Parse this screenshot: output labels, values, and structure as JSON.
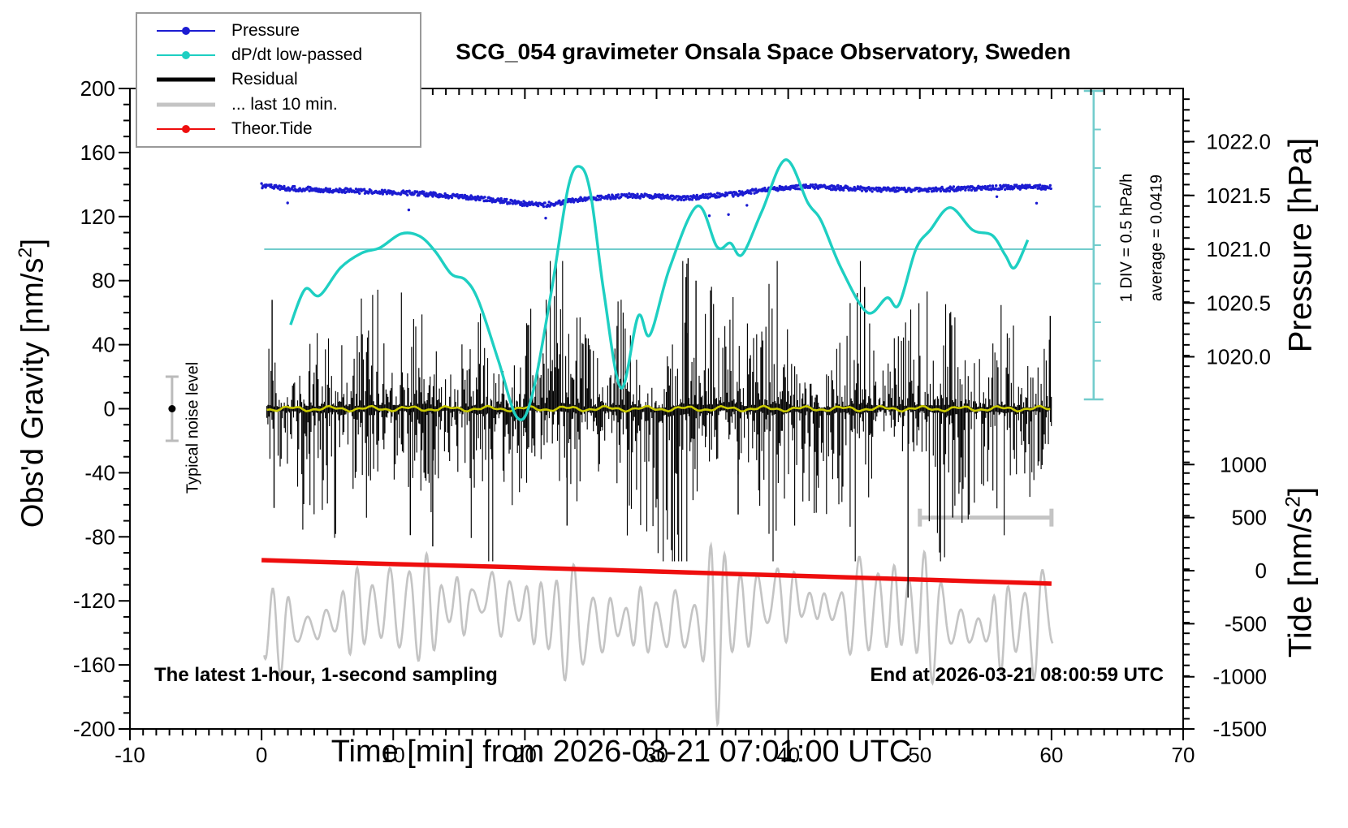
{
  "header": {
    "title": "SCG_054 gravimeter Onsala Space Observatory, Sweden"
  },
  "legend": {
    "items": [
      {
        "label": "Pressure",
        "color": "#1c1cd2",
        "style": "thin-dot"
      },
      {
        "label": "dP/dt low-passed",
        "color": "#1ecfc2",
        "style": "thin-dot"
      },
      {
        "label": "Residual",
        "color": "#000000",
        "style": "thick"
      },
      {
        "label": "... last 10 min.",
        "color": "#c4c4c4",
        "style": "thick"
      },
      {
        "label": "Theor.Tide",
        "color": "#ee0e0e",
        "style": "thin-dot"
      }
    ]
  },
  "axes": {
    "left": {
      "label_pre": "Obs'd Gravity [nm/s",
      "label_sup": "2",
      "label_post": "]",
      "ticks": [
        -200,
        -160,
        -120,
        -80,
        -40,
        0,
        40,
        80,
        120,
        160,
        200
      ],
      "minor_step": 10,
      "range": [
        -200,
        200
      ]
    },
    "bottom": {
      "label": "Time [min] from 2026-03-21 07:01:00 UTC",
      "ticks": [
        -10,
        0,
        10,
        20,
        30,
        40,
        50,
        60,
        70
      ],
      "minor_step": 1,
      "range": [
        -10,
        70
      ]
    },
    "right_pressure": {
      "label": "Pressure [hPa]",
      "ticks": [
        1022.0,
        1021.5,
        1021.0,
        1020.5,
        1020.0
      ]
    },
    "right_tide": {
      "label_pre": "Tide [nm/s",
      "label_sup": "2",
      "label_post": "]",
      "ticks": [
        1000,
        500,
        0,
        -500,
        -1000,
        -1500
      ]
    }
  },
  "annotations": {
    "sampling_note": "The latest 1-hour, 1-second sampling",
    "end_note": "End at 2026-03-21 08:00:59 UTC",
    "noise_label": "Typical noise level",
    "div_label": "1 DIV = 0.5 hPa/h",
    "average_label": "average = 0.0419"
  },
  "chart_data": {
    "type": "line",
    "title": "SCG_054 gravimeter Onsala Space Observatory, Sweden",
    "xlabel": "Time [min] from 2026-03-21 07:01:00 UTC",
    "x_range": [
      -10,
      70
    ],
    "gravity_range_nm_s2": [
      -200,
      200
    ],
    "pressure_range_hpa": [
      1019.8,
      1022.5
    ],
    "tide_range_nm_s2": [
      -1500,
      1000
    ],
    "series": [
      {
        "name": "Pressure",
        "axis": "pressure_hpa",
        "color": "#1c1cd2",
        "style": "noisy-dots",
        "points": [
          [
            0,
            1021.59
          ],
          [
            2,
            1021.566
          ],
          [
            4,
            1021.555
          ],
          [
            6,
            1021.547
          ],
          [
            8,
            1021.536
          ],
          [
            10,
            1021.528
          ],
          [
            12,
            1021.517
          ],
          [
            14,
            1021.498
          ],
          [
            16,
            1021.479
          ],
          [
            18,
            1021.453
          ],
          [
            20,
            1021.423
          ],
          [
            21.3,
            1021.411
          ],
          [
            22.5,
            1021.43
          ],
          [
            24,
            1021.46
          ],
          [
            26,
            1021.483
          ],
          [
            28,
            1021.498
          ],
          [
            30,
            1021.49
          ],
          [
            32,
            1021.475
          ],
          [
            34,
            1021.494
          ],
          [
            36,
            1021.513
          ],
          [
            38,
            1021.551
          ],
          [
            40,
            1021.574
          ],
          [
            42,
            1021.581
          ],
          [
            44,
            1021.57
          ],
          [
            46,
            1021.558
          ],
          [
            48,
            1021.551
          ],
          [
            50,
            1021.551
          ],
          [
            52,
            1021.558
          ],
          [
            54,
            1021.566
          ],
          [
            56,
            1021.574
          ],
          [
            58,
            1021.577
          ],
          [
            60,
            1021.574
          ]
        ]
      },
      {
        "name": "dP/dt low-passed",
        "axis": "hpa_per_hour_rel_ref",
        "color": "#1ecfc2",
        "div_scale_hpa_per_h": 0.5,
        "average_hpa_per_h": 0.0419,
        "style": "smooth-line",
        "points": [
          [
            2.2,
            -0.98
          ],
          [
            3.3,
            -0.52
          ],
          [
            4.4,
            -0.6
          ],
          [
            6,
            -0.24
          ],
          [
            7.6,
            -0.05
          ],
          [
            9,
            0.02
          ],
          [
            10.6,
            0.2
          ],
          [
            12,
            0.17
          ],
          [
            13.2,
            -0.03
          ],
          [
            14.4,
            -0.32
          ],
          [
            15.5,
            -0.4
          ],
          [
            16.5,
            -0.68
          ],
          [
            18,
            -1.45
          ],
          [
            19.4,
            -2.18
          ],
          [
            20.5,
            -1.93
          ],
          [
            22,
            -0.56
          ],
          [
            23.3,
            0.81
          ],
          [
            24.2,
            1.07
          ],
          [
            25,
            0.71
          ],
          [
            26,
            -0.56
          ],
          [
            27.3,
            -1.8
          ],
          [
            28.6,
            -0.87
          ],
          [
            29.5,
            -1.11
          ],
          [
            31,
            -0.24
          ],
          [
            33.1,
            0.56
          ],
          [
            34.6,
            0.03
          ],
          [
            35.6,
            0.08
          ],
          [
            36.5,
            -0.07
          ],
          [
            38,
            0.49
          ],
          [
            39.8,
            1.16
          ],
          [
            41.5,
            0.6
          ],
          [
            42.5,
            0.37
          ],
          [
            44,
            -0.24
          ],
          [
            46,
            -0.82
          ],
          [
            47.5,
            -0.63
          ],
          [
            48.4,
            -0.72
          ],
          [
            49.7,
            0
          ],
          [
            50.8,
            0.25
          ],
          [
            52.3,
            0.54
          ],
          [
            54,
            0.25
          ],
          [
            55.5,
            0.18
          ],
          [
            56.5,
            -0.08
          ],
          [
            57.2,
            -0.24
          ],
          [
            58.2,
            0.12
          ]
        ]
      },
      {
        "name": "Residual",
        "axis": "gravity_nm_s2",
        "color": "#000000",
        "style": "noise-band",
        "time_span_min": [
          0.4,
          60.05
        ],
        "typical_band_nm_s2": 25,
        "spikes": [
          [
            0.8,
            68
          ],
          [
            0.95,
            -62
          ],
          [
            11.3,
            -79
          ],
          [
            13.0,
            -86
          ],
          [
            23.2,
            -73
          ],
          [
            32.4,
            94
          ],
          [
            33.0,
            80
          ],
          [
            36.2,
            -66
          ],
          [
            45.8,
            76
          ],
          [
            49.1,
            -118
          ],
          [
            52.5,
            -68
          ],
          [
            59.9,
            58
          ]
        ],
        "mean_line_color": "#c9c900",
        "mean_nm_s2": 0
      },
      {
        "name": "... last 10 min.",
        "axis": "magnified-residual",
        "color": "#c4c4c4",
        "style": "oscillation",
        "time_span_min": [
          0.2,
          60.1
        ],
        "window_bracket": {
          "t0": 50,
          "t1": 60,
          "gravity_nm_s2": -68
        }
      },
      {
        "name": "Theor.Tide",
        "axis": "tide_nm_s2",
        "color": "#ee0e0e",
        "style": "thick-line",
        "points": [
          [
            0,
            99
          ],
          [
            10,
            62
          ],
          [
            20,
            30
          ],
          [
            30,
            -8
          ],
          [
            40,
            -46
          ],
          [
            50,
            -84
          ],
          [
            60,
            -122
          ]
        ]
      }
    ],
    "noise_marker": {
      "t": -6.8,
      "value_nm_s2": 0,
      "half_range_nm_s2": 20
    },
    "div_bar": {
      "t": 63.2,
      "divisions": 8,
      "ref_value": 0,
      "color": "#72cccc"
    },
    "legend_position": "top-left",
    "grid": false
  }
}
